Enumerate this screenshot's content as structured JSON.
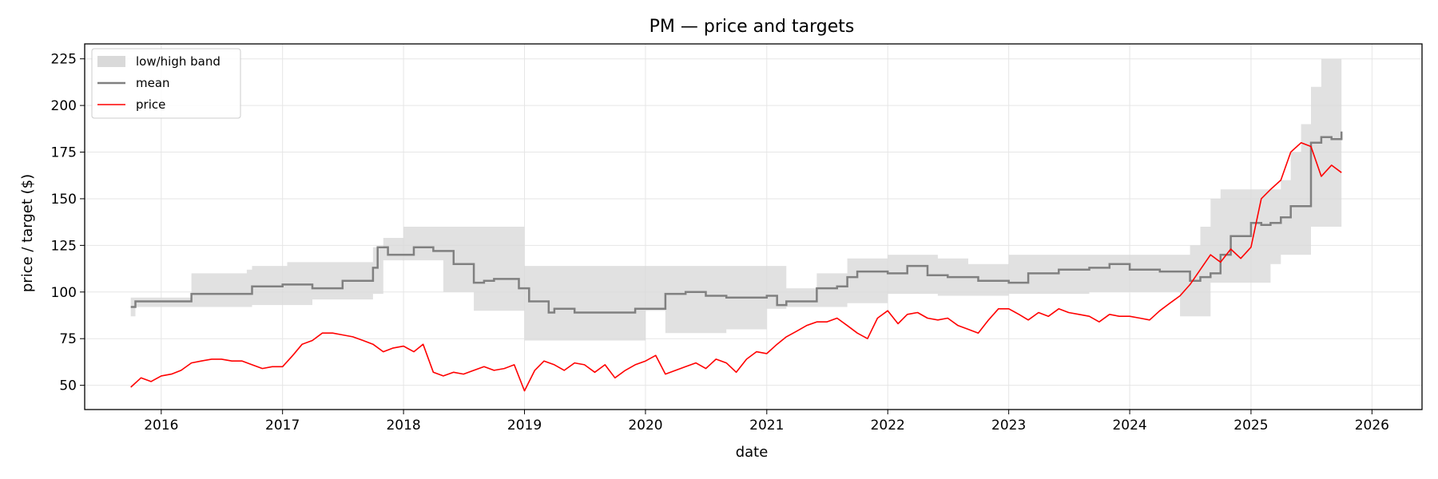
{
  "chart_data": {
    "type": "line",
    "title": "PM — price and targets",
    "xlabel": "date",
    "ylabel": "price / target ($)",
    "xlim": [
      "2015-05-15",
      "2026-06-01"
    ],
    "ylim": [
      37,
      233
    ],
    "x_ticks": [
      "2016",
      "2017",
      "2018",
      "2019",
      "2020",
      "2021",
      "2022",
      "2023",
      "2024",
      "2025",
      "2026"
    ],
    "y_ticks": [
      50,
      75,
      100,
      125,
      150,
      175,
      200,
      225
    ],
    "grid": true,
    "legend_position": "top-left",
    "legend": [
      "low/high band",
      "mean",
      "price"
    ],
    "colors": {
      "band": "#d9d9d9",
      "mean": "#808080",
      "price": "#ff0000"
    },
    "band": {
      "name": "low/high band",
      "x": [
        "2015-10-01",
        "2015-10-15",
        "2015-11-01",
        "2016-01-01",
        "2016-03-25",
        "2016-04-01",
        "2016-07-01",
        "2016-09-15",
        "2016-10-01",
        "2017-01-15",
        "2017-04-01",
        "2017-07-01",
        "2017-10-01",
        "2017-11-01",
        "2018-01-01",
        "2018-03-01",
        "2018-05-01",
        "2018-08-01",
        "2018-12-01",
        "2019-01-01",
        "2019-03-01",
        "2019-06-01",
        "2019-09-01",
        "2020-01-01",
        "2020-03-01",
        "2020-06-01",
        "2020-09-01",
        "2021-01-01",
        "2021-03-01",
        "2021-06-01",
        "2021-09-01",
        "2022-01-01",
        "2022-03-01",
        "2022-06-01",
        "2022-09-01",
        "2023-01-01",
        "2023-03-01",
        "2023-06-01",
        "2023-09-01",
        "2024-01-01",
        "2024-03-01",
        "2024-06-01",
        "2024-07-01",
        "2024-08-01",
        "2024-09-01",
        "2024-10-01",
        "2024-11-01",
        "2025-01-01",
        "2025-02-01",
        "2025-03-01",
        "2025-04-01",
        "2025-05-01",
        "2025-06-01",
        "2025-07-01",
        "2025-08-01",
        "2025-10-01"
      ],
      "low": [
        87,
        92,
        92,
        92,
        92,
        92,
        92,
        92,
        93,
        93,
        96,
        96,
        99,
        117,
        117,
        117,
        100,
        90,
        90,
        74,
        74,
        74,
        74,
        90,
        78,
        78,
        80,
        91,
        92,
        92,
        94,
        99,
        99,
        98,
        98,
        99,
        99,
        99,
        100,
        100,
        100,
        87,
        87,
        87,
        105,
        105,
        105,
        105,
        105,
        115,
        120,
        120,
        120,
        135,
        135,
        135
      ],
      "high": [
        97,
        97,
        97,
        97,
        97,
        110,
        110,
        112,
        114,
        116,
        116,
        116,
        124,
        129,
        135,
        135,
        135,
        135,
        135,
        114,
        114,
        114,
        114,
        114,
        114,
        114,
        114,
        114,
        102,
        110,
        118,
        120,
        120,
        118,
        115,
        120,
        120,
        120,
        120,
        120,
        120,
        120,
        125,
        135,
        150,
        155,
        155,
        155,
        155,
        155,
        160,
        175,
        190,
        210,
        225,
        225
      ]
    },
    "mean": {
      "name": "mean",
      "x": [
        "2015-10-01",
        "2015-10-15",
        "2016-03-15",
        "2016-04-01",
        "2016-09-15",
        "2016-10-01",
        "2017-01-01",
        "2017-04-01",
        "2017-07-01",
        "2017-10-01",
        "2017-10-15",
        "2017-11-15",
        "2018-02-01",
        "2018-04-01",
        "2018-06-01",
        "2018-07-01",
        "2018-08-01",
        "2018-09-01",
        "2018-10-01",
        "2018-11-01",
        "2018-12-15",
        "2019-01-15",
        "2019-03-15",
        "2019-04-01",
        "2019-06-01",
        "2019-09-01",
        "2019-12-01",
        "2020-01-01",
        "2020-03-01",
        "2020-05-01",
        "2020-07-01",
        "2020-09-01",
        "2020-12-01",
        "2021-01-01",
        "2021-02-01",
        "2021-03-01",
        "2021-06-01",
        "2021-08-01",
        "2021-09-01",
        "2021-10-01",
        "2022-01-01",
        "2022-03-01",
        "2022-05-01",
        "2022-07-01",
        "2022-10-01",
        "2023-01-01",
        "2023-03-01",
        "2023-06-01",
        "2023-09-01",
        "2023-11-01",
        "2024-01-01",
        "2024-04-01",
        "2024-07-01",
        "2024-08-01",
        "2024-09-01",
        "2024-10-01",
        "2024-11-01",
        "2025-01-01",
        "2025-02-01",
        "2025-03-01",
        "2025-04-01",
        "2025-05-01",
        "2025-07-01",
        "2025-08-01",
        "2025-09-01",
        "2025-10-01"
      ],
      "values": [
        92,
        95,
        95,
        99,
        99,
        103,
        104,
        102,
        106,
        113,
        124,
        120,
        124,
        122,
        115,
        115,
        105,
        106,
        107,
        107,
        102,
        95,
        89,
        91,
        89,
        89,
        91,
        91,
        99,
        100,
        98,
        97,
        97,
        98,
        93,
        95,
        102,
        103,
        108,
        111,
        110,
        114,
        109,
        108,
        106,
        105,
        110,
        112,
        113,
        115,
        112,
        111,
        106,
        108,
        110,
        120,
        130,
        137,
        136,
        137,
        140,
        146,
        180,
        183,
        182,
        186
      ]
    },
    "price": {
      "name": "price",
      "x": [
        "2015-10-01",
        "2015-11-01",
        "2015-12-01",
        "2016-01-01",
        "2016-02-01",
        "2016-03-01",
        "2016-04-01",
        "2016-05-01",
        "2016-06-01",
        "2016-07-01",
        "2016-08-01",
        "2016-09-01",
        "2016-10-01",
        "2016-11-01",
        "2016-12-01",
        "2017-01-01",
        "2017-02-01",
        "2017-03-01",
        "2017-04-01",
        "2017-05-01",
        "2017-06-01",
        "2017-07-01",
        "2017-08-01",
        "2017-09-01",
        "2017-10-01",
        "2017-11-01",
        "2017-12-01",
        "2018-01-01",
        "2018-02-01",
        "2018-03-01",
        "2018-04-01",
        "2018-05-01",
        "2018-06-01",
        "2018-07-01",
        "2018-08-01",
        "2018-09-01",
        "2018-10-01",
        "2018-11-01",
        "2018-12-01",
        "2019-01-01",
        "2019-02-01",
        "2019-03-01",
        "2019-04-01",
        "2019-05-01",
        "2019-06-01",
        "2019-07-01",
        "2019-08-01",
        "2019-09-01",
        "2019-10-01",
        "2019-11-01",
        "2019-12-01",
        "2020-01-01",
        "2020-02-01",
        "2020-03-01",
        "2020-04-01",
        "2020-05-01",
        "2020-06-01",
        "2020-07-01",
        "2020-08-01",
        "2020-09-01",
        "2020-10-01",
        "2020-11-01",
        "2020-12-01",
        "2021-01-01",
        "2021-02-01",
        "2021-03-01",
        "2021-04-01",
        "2021-05-01",
        "2021-06-01",
        "2021-07-01",
        "2021-08-01",
        "2021-09-01",
        "2021-10-01",
        "2021-11-01",
        "2021-12-01",
        "2022-01-01",
        "2022-02-01",
        "2022-03-01",
        "2022-04-01",
        "2022-05-01",
        "2022-06-01",
        "2022-07-01",
        "2022-08-01",
        "2022-09-01",
        "2022-10-01",
        "2022-11-01",
        "2022-12-01",
        "2023-01-01",
        "2023-02-01",
        "2023-03-01",
        "2023-04-01",
        "2023-05-01",
        "2023-06-01",
        "2023-07-01",
        "2023-08-01",
        "2023-09-01",
        "2023-10-01",
        "2023-11-01",
        "2023-12-01",
        "2024-01-01",
        "2024-02-01",
        "2024-03-01",
        "2024-04-01",
        "2024-05-01",
        "2024-06-01",
        "2024-07-01",
        "2024-08-01",
        "2024-09-01",
        "2024-10-01",
        "2024-11-01",
        "2024-12-01",
        "2025-01-01",
        "2025-02-01",
        "2025-03-01",
        "2025-04-01",
        "2025-05-01",
        "2025-06-01",
        "2025-07-01",
        "2025-08-01",
        "2025-09-01",
        "2025-10-01"
      ],
      "values": [
        49,
        54,
        52,
        55,
        56,
        58,
        62,
        63,
        64,
        64,
        63,
        63,
        61,
        59,
        60,
        60,
        66,
        72,
        74,
        78,
        78,
        77,
        76,
        74,
        72,
        68,
        70,
        71,
        68,
        72,
        57,
        55,
        57,
        56,
        58,
        60,
        58,
        59,
        61,
        47,
        58,
        63,
        61,
        58,
        62,
        61,
        57,
        61,
        54,
        58,
        61,
        63,
        66,
        56,
        58,
        60,
        62,
        59,
        64,
        62,
        57,
        64,
        68,
        67,
        72,
        76,
        79,
        82,
        84,
        84,
        86,
        82,
        78,
        75,
        86,
        90,
        83,
        88,
        89,
        86,
        85,
        86,
        82,
        80,
        78,
        85,
        91,
        91,
        88,
        85,
        89,
        87,
        91,
        89,
        88,
        87,
        84,
        88,
        87,
        87,
        86,
        85,
        90,
        94,
        98,
        104,
        112,
        120,
        116,
        123,
        118,
        124,
        150,
        155,
        160,
        175,
        180,
        178,
        162,
        168,
        164
      ]
    }
  }
}
